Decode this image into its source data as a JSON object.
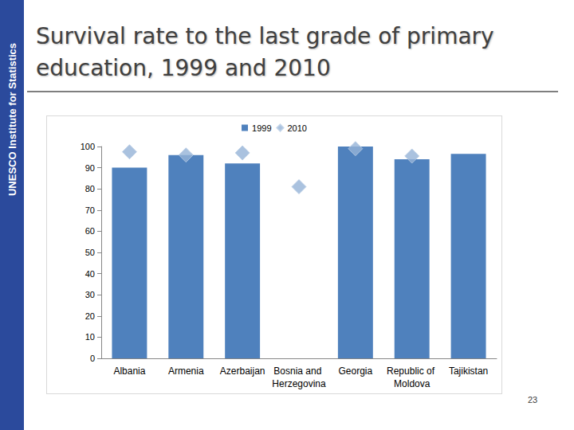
{
  "chart_data": {
    "type": "bar",
    "title": "Survival rate to the last grade of primary education, 1999 and 2010",
    "categories": [
      "Albania",
      "Armenia",
      "Azerbaijan",
      "Bosnia and Herzegovina",
      "Georgia",
      "Republic of Moldova",
      "Tajikistan"
    ],
    "series": [
      {
        "name": "1999",
        "type": "bar",
        "color": "#4f81bd",
        "values": [
          90,
          96,
          92,
          null,
          100,
          94,
          96.5
        ]
      },
      {
        "name": "2010",
        "type": "scatter",
        "marker": "diamond",
        "color": "#95b3d7",
        "values": [
          97.5,
          96,
          97,
          81,
          99,
          95.5,
          null
        ]
      }
    ],
    "ylim": [
      0,
      100
    ],
    "yticks": [
      0,
      10,
      20,
      30,
      40,
      50,
      60,
      70,
      80,
      90,
      100
    ],
    "grid": false,
    "legend": "top"
  },
  "sidebar_text": "UNESCO Institute for Statistics",
  "page_number": 23
}
